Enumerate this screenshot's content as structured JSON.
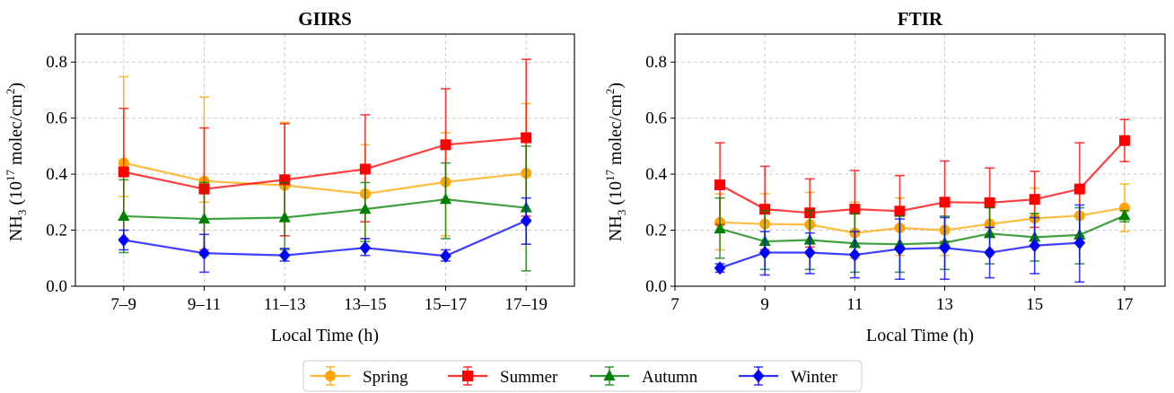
{
  "chart_data": [
    {
      "type": "line",
      "title": "GIIRS",
      "xlabel": "Local Time (h)",
      "ylabel_parts": [
        "NH",
        "3",
        " (10",
        "17",
        " molec/cm",
        "2",
        ")"
      ],
      "x_kind": "categorical",
      "categories": [
        "7–9",
        "9–11",
        "11–13",
        "13–15",
        "15–17",
        "17–19"
      ],
      "ylim": [
        0,
        0.9
      ],
      "yticks": [
        "0.0",
        "0.2",
        "0.4",
        "0.6",
        "0.8"
      ],
      "grid": true,
      "series": [
        {
          "name": "Spring",
          "values": [
            0.44,
            0.375,
            0.36,
            0.33,
            0.372,
            0.403
          ],
          "err_low": [
            0.32,
            0.3,
            0.23,
            0.17,
            0.18,
            0.15
          ],
          "err_high": [
            0.748,
            0.675,
            0.585,
            0.505,
            0.548,
            0.652
          ]
        },
        {
          "name": "Summer",
          "values": [
            0.408,
            0.347,
            0.38,
            0.418,
            0.505,
            0.53
          ],
          "err_low": [
            0.17,
            0.13,
            0.18,
            0.23,
            0.31,
            0.25
          ],
          "err_high": [
            0.635,
            0.565,
            0.58,
            0.612,
            0.705,
            0.81
          ]
        },
        {
          "name": "Autumn",
          "values": [
            0.25,
            0.24,
            0.245,
            0.275,
            0.31,
            0.28
          ],
          "err_low": [
            0.12,
            0.11,
            0.13,
            0.16,
            0.17,
            0.055
          ],
          "err_high": [
            0.38,
            0.37,
            0.37,
            0.37,
            0.44,
            0.5
          ]
        },
        {
          "name": "Winter",
          "values": [
            0.165,
            0.118,
            0.11,
            0.137,
            0.108,
            0.234
          ],
          "err_low": [
            0.13,
            0.05,
            0.09,
            0.11,
            0.09,
            0.15
          ],
          "err_high": [
            0.2,
            0.185,
            0.135,
            0.17,
            0.13,
            0.315
          ]
        }
      ]
    },
    {
      "type": "line",
      "title": "FTIR",
      "xlabel": "Local Time (h)",
      "ylabel_parts": [
        "NH",
        "3",
        " (10",
        "17",
        " molec/cm",
        "2",
        ")"
      ],
      "x_kind": "numeric",
      "xlim": [
        7,
        17.9
      ],
      "xticks": [
        7,
        9,
        11,
        13,
        15,
        17
      ],
      "x": [
        8,
        9,
        10,
        11,
        12,
        13,
        14,
        15,
        16,
        17
      ],
      "ylim": [
        0,
        0.9
      ],
      "yticks": [
        "0.0",
        "0.2",
        "0.4",
        "0.6",
        "0.8"
      ],
      "grid": true,
      "series": [
        {
          "name": "Spring",
          "values": [
            0.228,
            0.222,
            0.22,
            0.19,
            0.208,
            0.2,
            0.222,
            0.242,
            0.252,
            0.28
          ],
          "err_low": [
            0.13,
            0.12,
            0.12,
            0.1,
            0.11,
            0.11,
            0.13,
            0.14,
            0.15,
            0.195
          ],
          "err_high": [
            0.33,
            0.33,
            0.335,
            0.3,
            0.315,
            0.3,
            0.31,
            0.35,
            0.36,
            0.365
          ]
        },
        {
          "name": "Summer",
          "values": [
            0.362,
            0.275,
            0.262,
            0.275,
            0.268,
            0.3,
            0.298,
            0.31,
            0.347,
            0.52
          ],
          "err_low": [
            0.22,
            0.13,
            0.14,
            0.14,
            0.14,
            0.16,
            0.18,
            0.21,
            0.18,
            0.445
          ],
          "err_high": [
            0.512,
            0.428,
            0.383,
            0.413,
            0.395,
            0.447,
            0.422,
            0.41,
            0.512,
            0.595
          ]
        },
        {
          "name": "Autumn",
          "values": [
            0.205,
            0.16,
            0.165,
            0.153,
            0.15,
            0.155,
            0.188,
            0.175,
            0.183,
            0.252
          ],
          "err_low": [
            0.1,
            0.06,
            0.06,
            0.05,
            0.05,
            0.06,
            0.08,
            0.09,
            0.08,
            0.23
          ],
          "err_high": [
            0.315,
            0.27,
            0.27,
            0.26,
            0.25,
            0.25,
            0.28,
            0.26,
            0.28,
            0.27
          ]
        },
        {
          "name": "Winter",
          "values": [
            0.065,
            0.12,
            0.12,
            0.112,
            0.133,
            0.137,
            0.12,
            0.145,
            0.155,
            null
          ],
          "err_low": [
            0.05,
            0.04,
            0.045,
            0.03,
            0.025,
            0.025,
            0.03,
            0.045,
            0.015,
            null
          ],
          "err_high": [
            0.08,
            0.195,
            0.19,
            0.195,
            0.24,
            0.245,
            0.21,
            0.245,
            0.29,
            null
          ]
        }
      ]
    }
  ],
  "legend": {
    "placement": "bottom-center",
    "items": [
      {
        "label": "Spring",
        "color": "#FFA500",
        "marker": "circle"
      },
      {
        "label": "Summer",
        "color": "#FF0000",
        "marker": "square"
      },
      {
        "label": "Autumn",
        "color": "#008000",
        "marker": "triangle"
      },
      {
        "label": "Winter",
        "color": "#0000FF",
        "marker": "diamond"
      }
    ]
  }
}
